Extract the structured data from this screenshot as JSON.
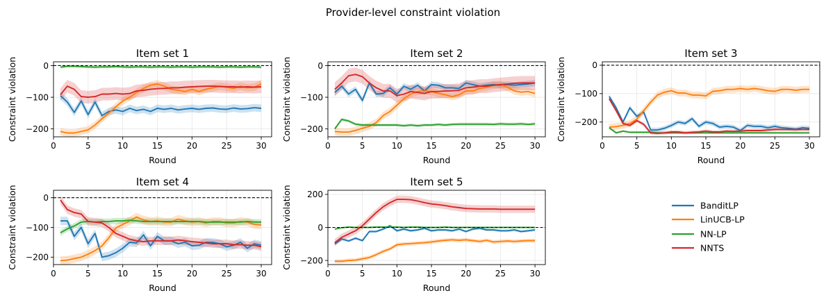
{
  "chart_data": {
    "type": "line",
    "suptitle": "Provider-level constraint violation",
    "legend": {
      "location": "empty grid slot (row 2, column 3)",
      "entries": [
        "BanditLP",
        "LinUCB-LP",
        "NN-LP",
        "NNTS"
      ]
    },
    "series_colors": {
      "BanditLP": "#1f77b4",
      "LinUCB-LP": "#ff7f0e",
      "NN-LP": "#2ca02c",
      "NNTS": "#d62728"
    },
    "x": [
      1,
      2,
      3,
      4,
      5,
      6,
      7,
      8,
      9,
      10,
      11,
      12,
      13,
      14,
      15,
      16,
      17,
      18,
      19,
      20,
      21,
      22,
      23,
      24,
      25,
      26,
      27,
      28,
      29,
      30
    ],
    "panels": [
      {
        "title": "Item set 1",
        "xlabel": "Round",
        "ylabel": "Constraint violation",
        "xlim": [
          0,
          31.5
        ],
        "ylim": [
          -225,
          12
        ],
        "xticks": [
          0,
          5,
          10,
          15,
          20,
          25,
          30
        ],
        "xtick_labels": [
          "0",
          "5",
          "10",
          "15",
          "20",
          "25",
          "30"
        ],
        "yticks": [
          0,
          -100,
          -200
        ],
        "ytick_labels": [
          "0",
          "−100",
          "−200"
        ],
        "reference_line": 0,
        "series": [
          {
            "name": "BanditLP",
            "band": 12,
            "values": [
              -95,
              -115,
              -148,
              -112,
              -155,
              -115,
              -158,
              -145,
              -140,
              -145,
              -135,
              -142,
              -138,
              -145,
              -135,
              -138,
              -135,
              -140,
              -137,
              -135,
              -138,
              -135,
              -134,
              -137,
              -138,
              -134,
              -137,
              -136,
              -133,
              -135
            ]
          },
          {
            "name": "LinUCB-LP",
            "band": 12,
            "values": [
              -208,
              -213,
              -213,
              -208,
              -203,
              -188,
              -168,
              -150,
              -130,
              -112,
              -100,
              -85,
              -72,
              -62,
              -58,
              -65,
              -75,
              -78,
              -82,
              -75,
              -82,
              -75,
              -70,
              -65,
              -68,
              -72,
              -65,
              -70,
              -68,
              -58
            ]
          },
          {
            "name": "NN-LP",
            "band": 4,
            "values": [
              -5,
              -2,
              -2,
              -3,
              -4,
              -5,
              -4,
              -4,
              -3,
              -4,
              -5,
              -4,
              -4,
              -5,
              -4,
              -4,
              -5,
              -4,
              -4,
              -5,
              -4,
              -4,
              -4,
              -5,
              -4,
              -4,
              -5,
              -4,
              -4,
              -5
            ]
          },
          {
            "name": "NNTS",
            "band": 20,
            "values": [
              -92,
              -65,
              -75,
              -98,
              -100,
              -98,
              -90,
              -90,
              -88,
              -90,
              -88,
              -80,
              -78,
              -75,
              -73,
              -72,
              -70,
              -70,
              -68,
              -67,
              -66,
              -65,
              -65,
              -66,
              -67,
              -67,
              -68,
              -67,
              -68,
              -67
            ]
          }
        ]
      },
      {
        "title": "Item set 2",
        "xlabel": "Round",
        "ylabel": "Constraint violation",
        "xlim": [
          0,
          31.5
        ],
        "ylim": [
          -225,
          12
        ],
        "xticks": [
          0,
          5,
          10,
          15,
          20,
          25,
          30
        ],
        "xtick_labels": [
          "0",
          "5",
          "10",
          "15",
          "20",
          "25",
          "30"
        ],
        "yticks": [
          0,
          -100,
          -200
        ],
        "ytick_labels": [
          "0",
          "−100",
          "−200"
        ],
        "reference_line": 0,
        "series": [
          {
            "name": "BanditLP",
            "band": 10,
            "values": [
              -85,
              -65,
              -90,
              -75,
              -110,
              -55,
              -90,
              -88,
              -70,
              -90,
              -65,
              -75,
              -62,
              -80,
              -60,
              -62,
              -70,
              -70,
              -72,
              -55,
              -60,
              -65,
              -62,
              -60,
              -62,
              -60,
              -62,
              -60,
              -58,
              -55
            ]
          },
          {
            "name": "LinUCB-LP",
            "band": 12,
            "values": [
              -208,
              -210,
              -210,
              -205,
              -198,
              -192,
              -180,
              -158,
              -145,
              -125,
              -105,
              -90,
              -82,
              -80,
              -82,
              -88,
              -92,
              -98,
              -92,
              -80,
              -80,
              -72,
              -68,
              -62,
              -60,
              -68,
              -80,
              -84,
              -82,
              -88
            ]
          },
          {
            "name": "NN-LP",
            "band": 5,
            "values": [
              -200,
              -170,
              -175,
              -185,
              -188,
              -188,
              -188,
              -188,
              -188,
              -188,
              -190,
              -188,
              -190,
              -188,
              -188,
              -186,
              -188,
              -186,
              -185,
              -185,
              -185,
              -185,
              -185,
              -186,
              -184,
              -185,
              -185,
              -184,
              -186,
              -184
            ]
          },
          {
            "name": "NNTS",
            "band": 22,
            "values": [
              -75,
              -55,
              -32,
              -28,
              -35,
              -55,
              -70,
              -80,
              -80,
              -95,
              -90,
              -82,
              -85,
              -88,
              -82,
              -82,
              -80,
              -80,
              -78,
              -70,
              -68,
              -65,
              -65,
              -62,
              -60,
              -58,
              -56,
              -55,
              -55,
              -55
            ]
          }
        ]
      },
      {
        "title": "Item set 3",
        "xlabel": "Round",
        "ylabel": "Constraint violation",
        "xlim": [
          0,
          31.5
        ],
        "ylim": [
          -252,
          12
        ],
        "xticks": [
          0,
          5,
          10,
          15,
          20,
          25,
          30
        ],
        "xtick_labels": [
          "0",
          "5",
          "10",
          "15",
          "20",
          "25",
          "30"
        ],
        "yticks": [
          0,
          -100,
          -200
        ],
        "ytick_labels": [
          "0",
          "−100",
          "−200"
        ],
        "reference_line": 0,
        "series": [
          {
            "name": "BanditLP",
            "band": 8,
            "values": [
              -110,
              -150,
              -200,
              -150,
              -180,
              -165,
              -228,
              -228,
              -222,
              -212,
              -200,
              -205,
              -188,
              -215,
              -200,
              -205,
              -218,
              -215,
              -218,
              -230,
              -212,
              -215,
              -215,
              -220,
              -215,
              -220,
              -222,
              -225,
              -220,
              -222
            ]
          },
          {
            "name": "LinUCB-LP",
            "band": 12,
            "values": [
              -218,
              -216,
              -212,
              -205,
              -190,
              -160,
              -130,
              -105,
              -95,
              -90,
              -98,
              -98,
              -105,
              -105,
              -108,
              -92,
              -90,
              -85,
              -85,
              -82,
              -85,
              -82,
              -85,
              -90,
              -92,
              -85,
              -85,
              -88,
              -85,
              -85
            ]
          },
          {
            "name": "NN-LP",
            "band": 4,
            "values": [
              -220,
              -238,
              -232,
              -236,
              -236,
              -236,
              -236,
              -238,
              -238,
              -238,
              -238,
              -238,
              -238,
              -238,
              -238,
              -238,
              -238,
              -238,
              -238,
              -238,
              -238,
              -238,
              -238,
              -238,
              -238,
              -238,
              -238,
              -238,
              -238,
              -238
            ]
          },
          {
            "name": "NNTS",
            "band": 6,
            "values": [
              -118,
              -160,
              -205,
              -212,
              -195,
              -208,
              -238,
              -240,
              -238,
              -235,
              -235,
              -238,
              -236,
              -235,
              -232,
              -235,
              -235,
              -232,
              -233,
              -232,
              -230,
              -230,
              -230,
              -228,
              -226,
              -226,
              -226,
              -226,
              -226,
              -226
            ]
          }
        ]
      },
      {
        "title": "Item set 4",
        "xlabel": "Round",
        "ylabel": "Constraint violation",
        "xlim": [
          0,
          31.5
        ],
        "ylim": [
          -225,
          25
        ],
        "xticks": [
          0,
          5,
          10,
          15,
          20,
          25,
          30
        ],
        "xtick_labels": [
          "0",
          "5",
          "10",
          "15",
          "20",
          "25",
          "30"
        ],
        "yticks": [
          0,
          -100,
          -200
        ],
        "ytick_labels": [
          "0",
          "−100",
          "−200"
        ],
        "reference_line": 0,
        "series": [
          {
            "name": "BanditLP",
            "band": 14,
            "values": [
              -78,
              -78,
              -130,
              -100,
              -155,
              -120,
              -200,
              -195,
              -185,
              -170,
              -150,
              -152,
              -125,
              -162,
              -130,
              -145,
              -145,
              -155,
              -150,
              -162,
              -160,
              -150,
              -150,
              -155,
              -165,
              -160,
              -150,
              -170,
              -155,
              -160
            ]
          },
          {
            "name": "LinUCB-LP",
            "band": 14,
            "values": [
              -212,
              -210,
              -205,
              -200,
              -190,
              -178,
              -162,
              -135,
              -102,
              -90,
              -78,
              -65,
              -75,
              -80,
              -78,
              -82,
              -82,
              -72,
              -78,
              -82,
              -80,
              -85,
              -80,
              -80,
              -85,
              -85,
              -80,
              -82,
              -90,
              -92
            ]
          },
          {
            "name": "NN-LP",
            "band": 10,
            "values": [
              -118,
              -105,
              -95,
              -82,
              -80,
              -82,
              -80,
              -80,
              -78,
              -78,
              -76,
              -78,
              -80,
              -80,
              -80,
              -80,
              -80,
              -80,
              -80,
              -80,
              -80,
              -82,
              -82,
              -82,
              -82,
              -82,
              -82,
              -80,
              -82,
              -82
            ]
          },
          {
            "name": "NNTS",
            "band": 14,
            "values": [
              -8,
              -40,
              -50,
              -55,
              -80,
              -82,
              -85,
              -100,
              -120,
              -130,
              -140,
              -145,
              -148,
              -145,
              -145,
              -145,
              -145,
              -142,
              -145,
              -148,
              -150,
              -152,
              -155,
              -155,
              -155,
              -158,
              -158,
              -160,
              -160,
              -165
            ]
          }
        ]
      },
      {
        "title": "Item set 5",
        "xlabel": "Round",
        "ylabel": "Constraint violation",
        "xlim": [
          0,
          31.5
        ],
        "ylim": [
          -225,
          225
        ],
        "xticks": [
          0,
          5,
          10,
          15,
          20,
          25,
          30
        ],
        "xtick_labels": [
          "0",
          "5",
          "10",
          "15",
          "20",
          "25",
          "30"
        ],
        "yticks": [
          200,
          0,
          -200
        ],
        "ytick_labels": [
          "200",
          "0",
          "−200"
        ],
        "reference_line": 0,
        "series": [
          {
            "name": "BanditLP",
            "band": 8,
            "values": [
              -100,
              -70,
              -82,
              -65,
              -80,
              -25,
              -25,
              -10,
              10,
              -20,
              -10,
              -20,
              -15,
              -5,
              -20,
              -15,
              -15,
              -20,
              -10,
              -25,
              -10,
              -5,
              -15,
              -15,
              -20,
              -20,
              -15,
              -25,
              -20,
              -15
            ]
          },
          {
            "name": "LinUCB-LP",
            "band": 12,
            "values": [
              -205,
              -205,
              -200,
              -198,
              -190,
              -182,
              -165,
              -145,
              -130,
              -105,
              -100,
              -98,
              -95,
              -92,
              -88,
              -82,
              -78,
              -75,
              -78,
              -75,
              -80,
              -85,
              -78,
              -88,
              -85,
              -82,
              -85,
              -82,
              -80,
              -80
            ]
          },
          {
            "name": "NN-LP",
            "band": 4,
            "values": [
              -10,
              -2,
              2,
              0,
              0,
              0,
              2,
              2,
              2,
              2,
              0,
              2,
              2,
              0,
              0,
              0,
              2,
              0,
              0,
              0,
              0,
              0,
              0,
              0,
              0,
              0,
              0,
              0,
              0,
              0
            ]
          },
          {
            "name": "NNTS",
            "band": 22,
            "values": [
              -92,
              -60,
              -40,
              -20,
              10,
              50,
              90,
              125,
              150,
              170,
              170,
              168,
              160,
              150,
              142,
              138,
              132,
              125,
              120,
              115,
              113,
              112,
              112,
              112,
              110,
              110,
              110,
              110,
              110,
              110
            ]
          }
        ]
      }
    ]
  }
}
